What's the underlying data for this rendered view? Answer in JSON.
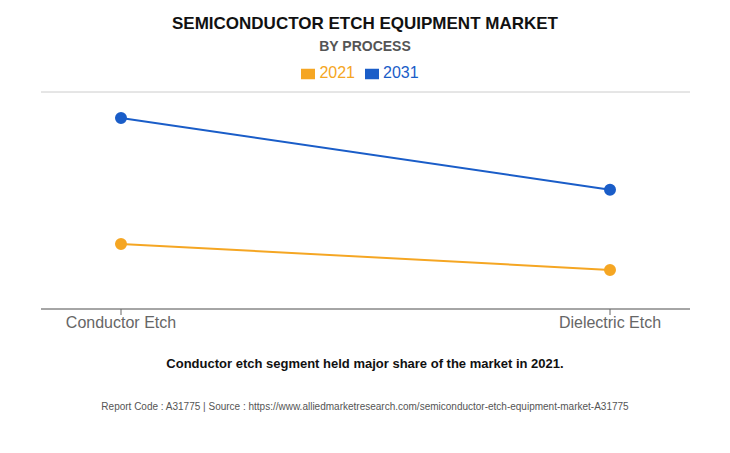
{
  "chart_data": {
    "type": "line",
    "title": "SEMICONDUCTOR ETCH EQUIPMENT MARKET",
    "subtitle": "BY PROCESS",
    "categories": [
      "Conductor Etch",
      "Dielectric Etch"
    ],
    "series": [
      {
        "name": "2021",
        "color": "#F5A623",
        "values": [
          0.3,
          0.18
        ],
        "marker": "circle"
      },
      {
        "name": "2031",
        "color": "#1A5DC8",
        "values": [
          0.88,
          0.55
        ],
        "marker": "circle"
      }
    ],
    "ylim": [
      0,
      1.0
    ],
    "yticks": [
      0,
      0.2,
      0.4,
      0.6,
      0.8,
      1.0
    ],
    "grid": true,
    "legend": "top",
    "tick_labels": "x",
    "annotations": [
      "Conductor etch segment held major share of the market in 2021.",
      "Report Code : A31775  |  Source : https://www.alliedmarketresearch.com/semiconductor-etch-equipment-market-A31775"
    ]
  }
}
